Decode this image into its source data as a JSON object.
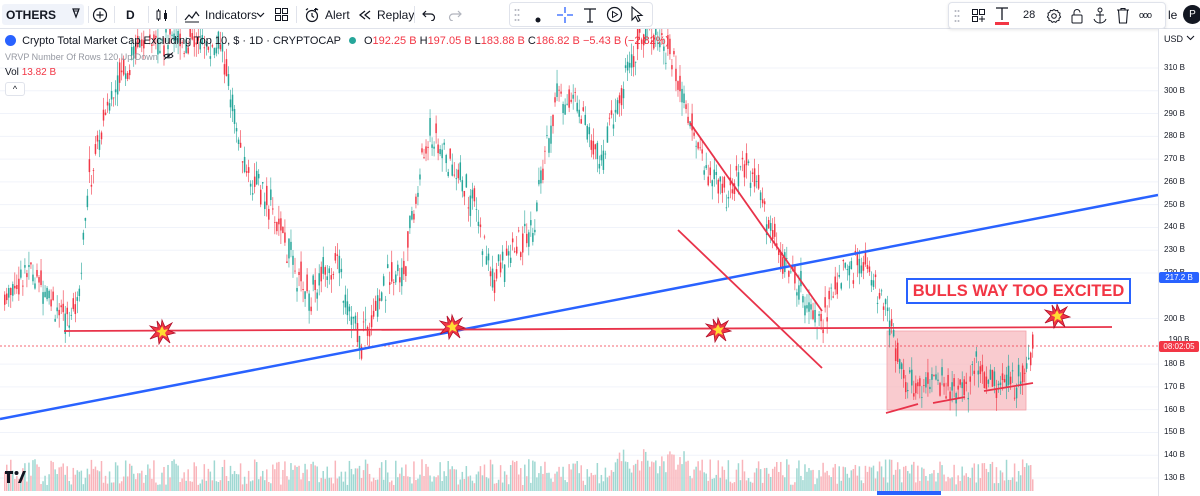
{
  "toolbar": {
    "symbol": "OTHERS",
    "interval": "D",
    "indicators_label": "Indicators",
    "alert_label": "Alert",
    "replay_label": "Replay",
    "font_size_value": "28",
    "more_label": "ooo",
    "right_cut_label": "le",
    "avatar_label": "P"
  },
  "legend": {
    "title": "Crypto Total Market Cap Excluding Top 10, $ · 1D · CRYPTOCAP",
    "open_label": "O",
    "open": "192.25 B",
    "high_label": "H",
    "high": "197.05 B",
    "low_label": "L",
    "low": "183.88 B",
    "close_label": "C",
    "close": "186.82 B",
    "change": "−5.43 B (−2.82%)",
    "vrvp": "VRVP Number Of Rows 120 Up/Down",
    "vol_label": "Vol",
    "vol_value": "13.82 B",
    "collapse": "^"
  },
  "price_scale": {
    "currency": "USD",
    "ticks": [
      "310 B",
      "300 B",
      "290 B",
      "280 B",
      "270 B",
      "260 B",
      "250 B",
      "240 B",
      "230 B",
      "220 B",
      "200 B",
      "180 B",
      "170 B",
      "160 B",
      "150 B",
      "140 B",
      "130 B"
    ],
    "blue_tag": "217.2 B",
    "red_tag": "190 B",
    "countdown": "08:02:05"
  },
  "annotation": {
    "text": "BULLS WAY TOO EXCITED"
  },
  "colors": {
    "up": "#26a69a",
    "down": "#f23645",
    "trend": "#2962ff",
    "zone": "#f7b9bf",
    "line": "#e8334a"
  },
  "chart_data": {
    "type": "candlestick",
    "price_unit": "B USD",
    "ylim": [
      128,
      325
    ],
    "series_close_path": [
      {
        "i": 0,
        "c": 210
      },
      {
        "i": 12,
        "c": 222
      },
      {
        "i": 22,
        "c": 212
      },
      {
        "i": 30,
        "c": 198
      },
      {
        "i": 36,
        "c": 208
      },
      {
        "i": 42,
        "c": 262
      },
      {
        "i": 55,
        "c": 305
      },
      {
        "i": 70,
        "c": 325
      },
      {
        "i": 90,
        "c": 322
      },
      {
        "i": 108,
        "c": 318
      },
      {
        "i": 118,
        "c": 268
      },
      {
        "i": 132,
        "c": 250
      },
      {
        "i": 146,
        "c": 218
      },
      {
        "i": 152,
        "c": 210
      },
      {
        "i": 164,
        "c": 228
      },
      {
        "i": 176,
        "c": 188
      },
      {
        "i": 186,
        "c": 212
      },
      {
        "i": 198,
        "c": 222
      },
      {
        "i": 210,
        "c": 282
      },
      {
        "i": 224,
        "c": 264
      },
      {
        "i": 232,
        "c": 252
      },
      {
        "i": 242,
        "c": 218
      },
      {
        "i": 252,
        "c": 228
      },
      {
        "i": 262,
        "c": 240
      },
      {
        "i": 274,
        "c": 300
      },
      {
        "i": 286,
        "c": 292
      },
      {
        "i": 296,
        "c": 270
      },
      {
        "i": 308,
        "c": 305
      },
      {
        "i": 318,
        "c": 330
      },
      {
        "i": 330,
        "c": 318
      },
      {
        "i": 340,
        "c": 285
      },
      {
        "i": 350,
        "c": 262
      },
      {
        "i": 360,
        "c": 256
      },
      {
        "i": 368,
        "c": 270
      },
      {
        "i": 376,
        "c": 250
      },
      {
        "i": 386,
        "c": 226
      },
      {
        "i": 398,
        "c": 208
      },
      {
        "i": 406,
        "c": 200
      },
      {
        "i": 416,
        "c": 222
      },
      {
        "i": 426,
        "c": 224
      },
      {
        "i": 432,
        "c": 214
      },
      {
        "i": 440,
        "c": 195
      },
      {
        "i": 448,
        "c": 170
      },
      {
        "i": 460,
        "c": 174
      },
      {
        "i": 472,
        "c": 169
      },
      {
        "i": 484,
        "c": 178
      },
      {
        "i": 492,
        "c": 171
      },
      {
        "i": 502,
        "c": 172
      },
      {
        "i": 510,
        "c": 190
      }
    ]
  }
}
